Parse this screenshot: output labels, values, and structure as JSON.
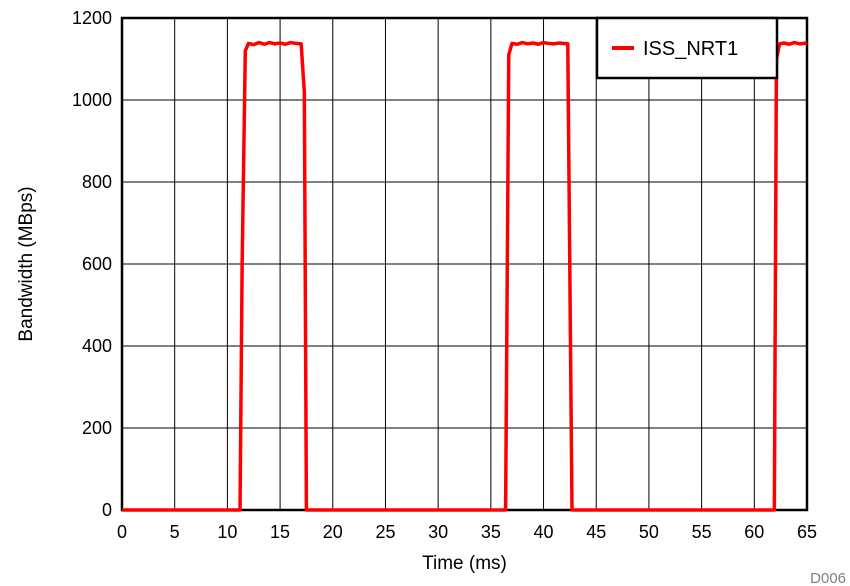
{
  "chart_data": {
    "type": "line",
    "title": "",
    "xlabel": "Time (ms)",
    "ylabel": "Bandwidth (MBps)",
    "xlim": [
      0,
      65
    ],
    "ylim": [
      0,
      1200
    ],
    "xticks": [
      0,
      5,
      10,
      15,
      20,
      25,
      30,
      35,
      40,
      45,
      50,
      55,
      60,
      65
    ],
    "yticks": [
      0,
      200,
      400,
      600,
      800,
      1000,
      1200
    ],
    "grid": true,
    "legend_position": "top-right",
    "series": [
      {
        "name": "ISS_NRT1",
        "color": "#ff0000",
        "x": [
          0,
          11.2,
          11.4,
          11.7,
          12,
          12.5,
          13,
          13.5,
          14,
          14.5,
          15,
          15.5,
          16,
          16.5,
          17.0,
          17.3,
          17.5,
          20,
          36.4,
          36.7,
          37,
          37.5,
          38,
          38.5,
          39,
          39.5,
          40,
          40.5,
          41,
          41.5,
          42.3,
          42.7,
          43.0,
          45,
          61.9,
          62.1,
          62.4,
          62.8,
          63.3,
          63.8,
          64.3,
          65
        ],
        "y": [
          0,
          0,
          600,
          1120,
          1138,
          1135,
          1140,
          1136,
          1140,
          1137,
          1139,
          1136,
          1140,
          1138,
          1137,
          1020,
          0,
          0,
          0,
          1110,
          1138,
          1136,
          1140,
          1137,
          1139,
          1136,
          1140,
          1138,
          1137,
          1139,
          1137,
          0,
          0,
          0,
          0,
          1100,
          1137,
          1139,
          1136,
          1140,
          1137,
          1139
        ]
      }
    ],
    "annotation": "D006"
  }
}
